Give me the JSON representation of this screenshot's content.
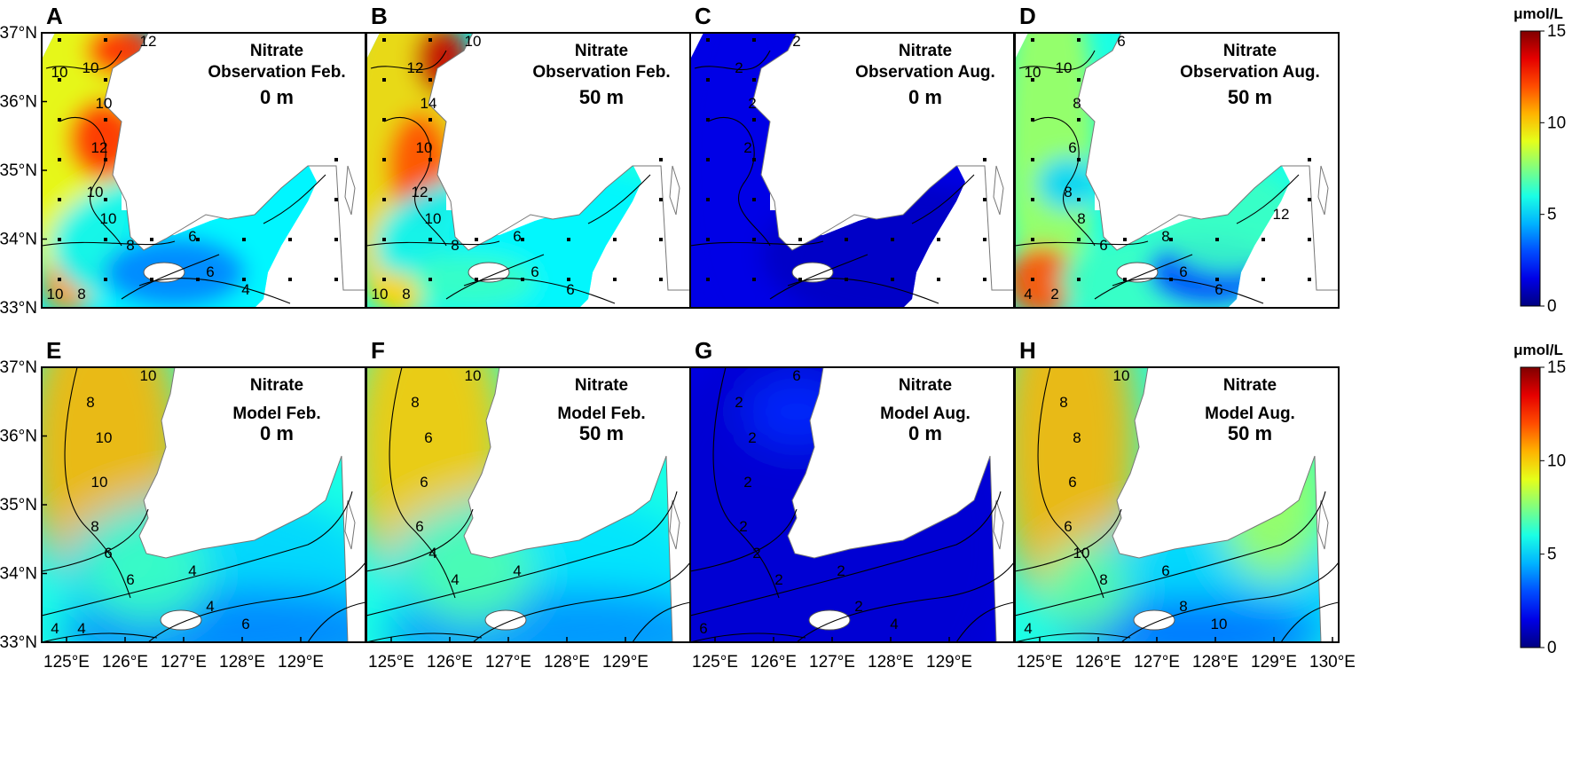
{
  "units": "μmol/L",
  "colorbar": {
    "min": 0,
    "max": 15,
    "ticks": [
      "0",
      "5",
      "10",
      "15"
    ],
    "colormap": "jet"
  },
  "lat_ticks": [
    "37°N",
    "36°N",
    "35°N",
    "34°N",
    "33°N"
  ],
  "lon_ticks_obs": [
    "125°E",
    "126°E",
    "127°E",
    "128°E",
    "129°E"
  ],
  "lon_ticks_model": [
    "125°E",
    "126°E",
    "127°E",
    "128°E",
    "129°E",
    "130°E"
  ],
  "colors": {
    "land": "#ffffff",
    "coast": "#777777",
    "contour": "#000000",
    "station": "#000000"
  },
  "panels": [
    {
      "id": "A",
      "variable": "Nitrate",
      "source": "Observation",
      "month": "Feb.",
      "depth": "0 m",
      "contour_labels": [
        "12",
        "10",
        "10",
        "12",
        "10",
        "10",
        "8",
        "6",
        "6",
        "4",
        "10",
        "8",
        "10"
      ]
    },
    {
      "id": "B",
      "variable": "Nitrate",
      "source": "Observation",
      "month": "Feb.",
      "depth": "50 m",
      "contour_labels": [
        "10",
        "12",
        "14",
        "10",
        "12",
        "10",
        "8",
        "6",
        "6",
        "6",
        "10",
        "8"
      ]
    },
    {
      "id": "C",
      "variable": "Nitrate",
      "source": "Observation",
      "month": "Aug.",
      "depth": "0 m",
      "contour_labels": [
        "2",
        "2",
        "2",
        "2"
      ]
    },
    {
      "id": "D",
      "variable": "Nitrate",
      "source": "Observation",
      "month": "Aug.",
      "depth": "50 m",
      "contour_labels": [
        "6",
        "10",
        "8",
        "6",
        "8",
        "8",
        "6",
        "8",
        "6",
        "6",
        "4",
        "2",
        "10",
        "12"
      ]
    },
    {
      "id": "E",
      "variable": "Nitrate",
      "source": "Model",
      "month": "Feb.",
      "depth": "0 m",
      "contour_labels": [
        "10",
        "8",
        "10",
        "10",
        "8",
        "6",
        "6",
        "4",
        "4",
        "6",
        "4",
        "4"
      ]
    },
    {
      "id": "F",
      "variable": "Nitrate",
      "source": "Model",
      "month": "Feb.",
      "depth": "50 m",
      "contour_labels": [
        "10",
        "8",
        "6",
        "6",
        "6",
        "4",
        "4",
        "4"
      ]
    },
    {
      "id": "G",
      "variable": "Nitrate",
      "source": "Model",
      "month": "Aug.",
      "depth": "0 m",
      "contour_labels": [
        "6",
        "2",
        "2",
        "2",
        "2",
        "2",
        "2",
        "2",
        "2",
        "4",
        "6"
      ]
    },
    {
      "id": "H",
      "variable": "Nitrate",
      "source": "Model",
      "month": "Aug.",
      "depth": "50 m",
      "contour_labels": [
        "10",
        "8",
        "8",
        "6",
        "6",
        "10",
        "8",
        "6",
        "8",
        "10",
        "4"
      ]
    }
  ]
}
